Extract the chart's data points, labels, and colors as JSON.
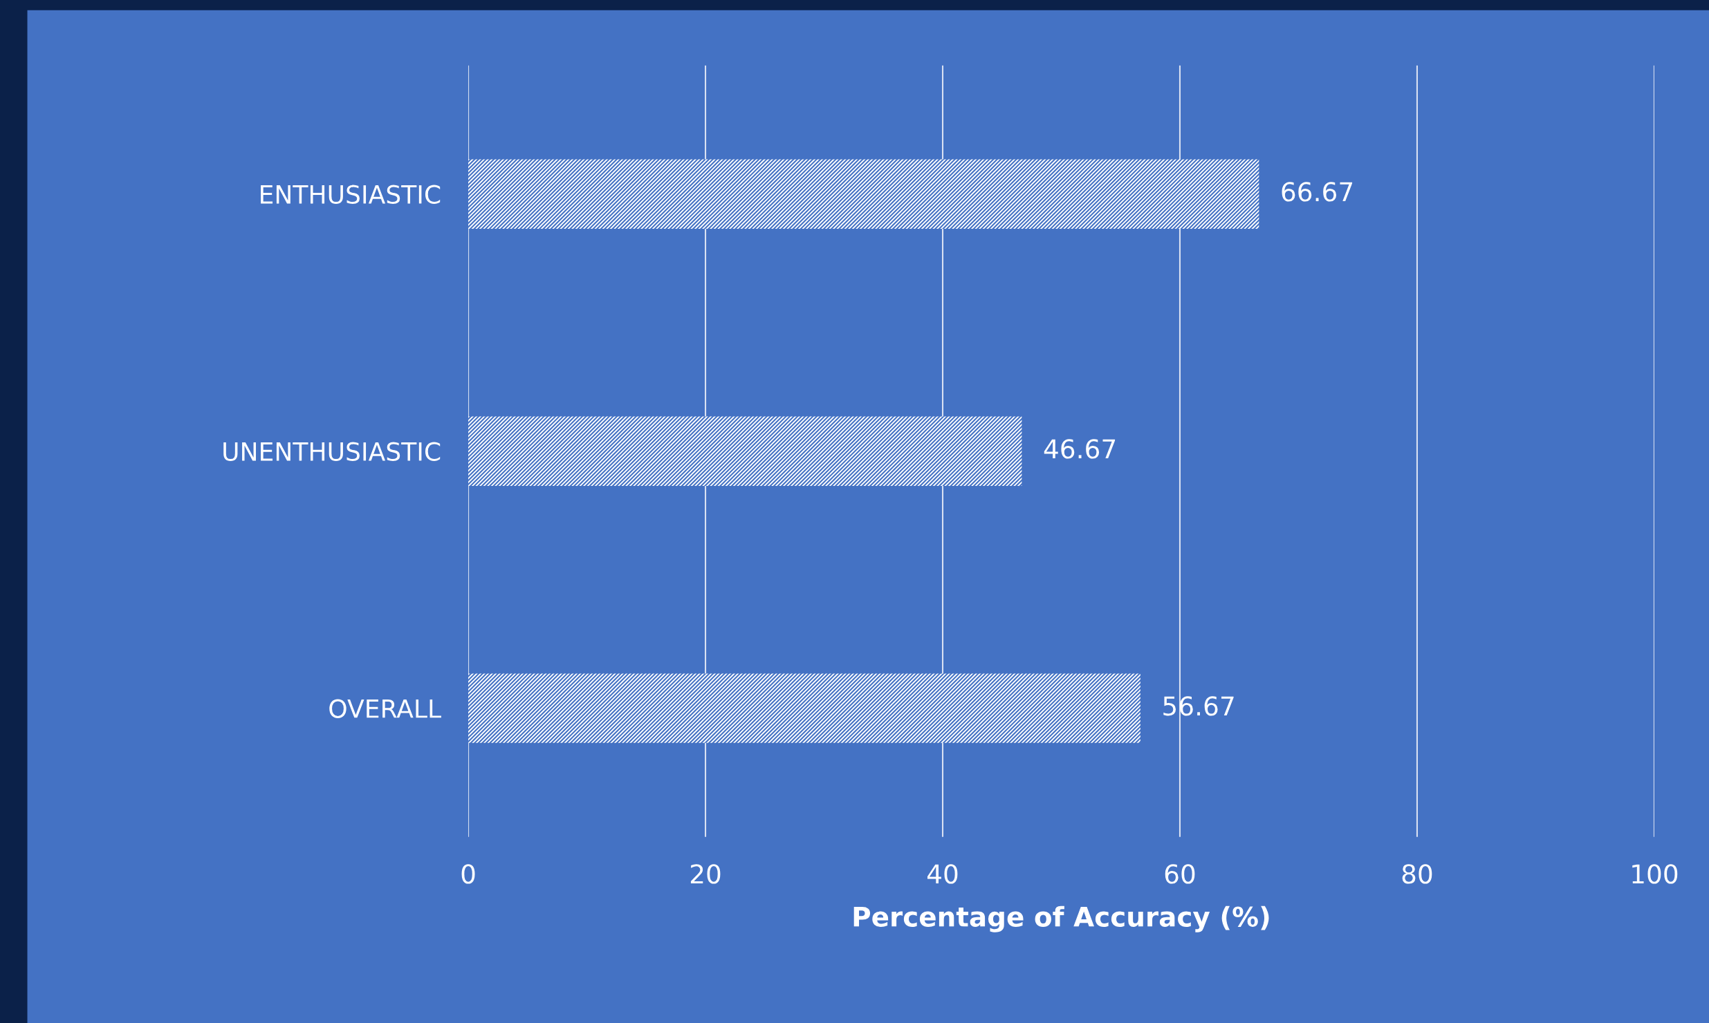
{
  "chart_data": {
    "type": "bar",
    "orientation": "horizontal",
    "xlabel": "Percentage of Accuracy (%)",
    "categories": [
      "ENTHUSIASTIC",
      "UNENTHUSIASTIC",
      "OVERALL"
    ],
    "values": [
      66.67,
      46.67,
      56.67
    ],
    "color": "#ffffff",
    "xlim": [
      0,
      100
    ],
    "xticks": [
      0,
      20,
      40,
      60,
      80,
      100
    ],
    "grid": "x",
    "data_labels": true
  }
}
